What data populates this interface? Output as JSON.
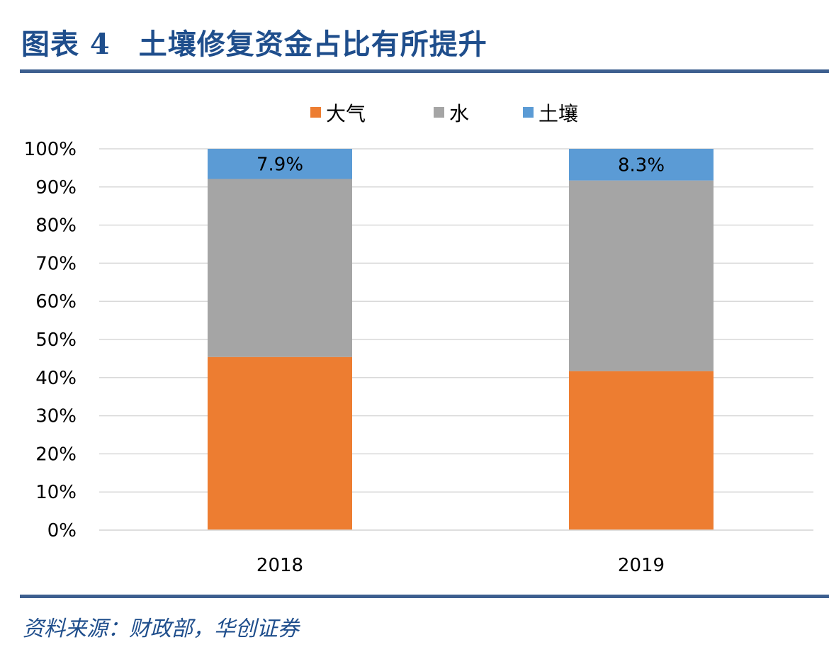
{
  "header": {
    "figure_label": "图表 4",
    "title": "土壤修复资金占比有所提升"
  },
  "footer": {
    "source": "资料来源：财政部，华创证券"
  },
  "chart_data": {
    "type": "bar",
    "stacked": true,
    "categories": [
      "2018",
      "2019"
    ],
    "series": [
      {
        "name": "大气",
        "values": [
          45.4,
          41.7
        ],
        "color": "#ed7d31"
      },
      {
        "name": "水",
        "values": [
          46.7,
          50.0
        ],
        "color": "#a5a5a5"
      },
      {
        "name": "土壤",
        "values": [
          7.9,
          8.3
        ],
        "color": "#5b9bd5"
      }
    ],
    "data_labels": {
      "土壤": [
        "7.9%",
        "8.3%"
      ]
    },
    "ylim": [
      0,
      100
    ],
    "yticks": [
      "0%",
      "10%",
      "20%",
      "30%",
      "40%",
      "50%",
      "60%",
      "70%",
      "80%",
      "90%",
      "100%"
    ],
    "grid": true,
    "legend_position": "top"
  }
}
